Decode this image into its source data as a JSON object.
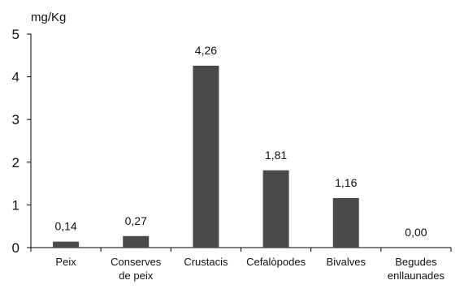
{
  "chart_data": {
    "type": "bar",
    "title": "",
    "ylabel": "mg/Kg",
    "xlabel": "",
    "ylim": [
      0,
      5
    ],
    "yticks": [
      "0",
      "1",
      "2",
      "3",
      "4",
      "5"
    ],
    "categories": [
      [
        "Peix"
      ],
      [
        "Conserves",
        "de peix"
      ],
      [
        "Crustacis"
      ],
      [
        "Cefalòpodes"
      ],
      [
        "Bivalves"
      ],
      [
        "Begudes",
        "enllaunades"
      ]
    ],
    "values": [
      0.14,
      0.27,
      4.26,
      1.81,
      1.16,
      0.0
    ],
    "value_labels": [
      "0,14",
      "0,27",
      "4,26",
      "1,81",
      "1,16",
      "0,00"
    ],
    "bar_color": "#4a4a4a",
    "grid": false,
    "legend": "none"
  }
}
